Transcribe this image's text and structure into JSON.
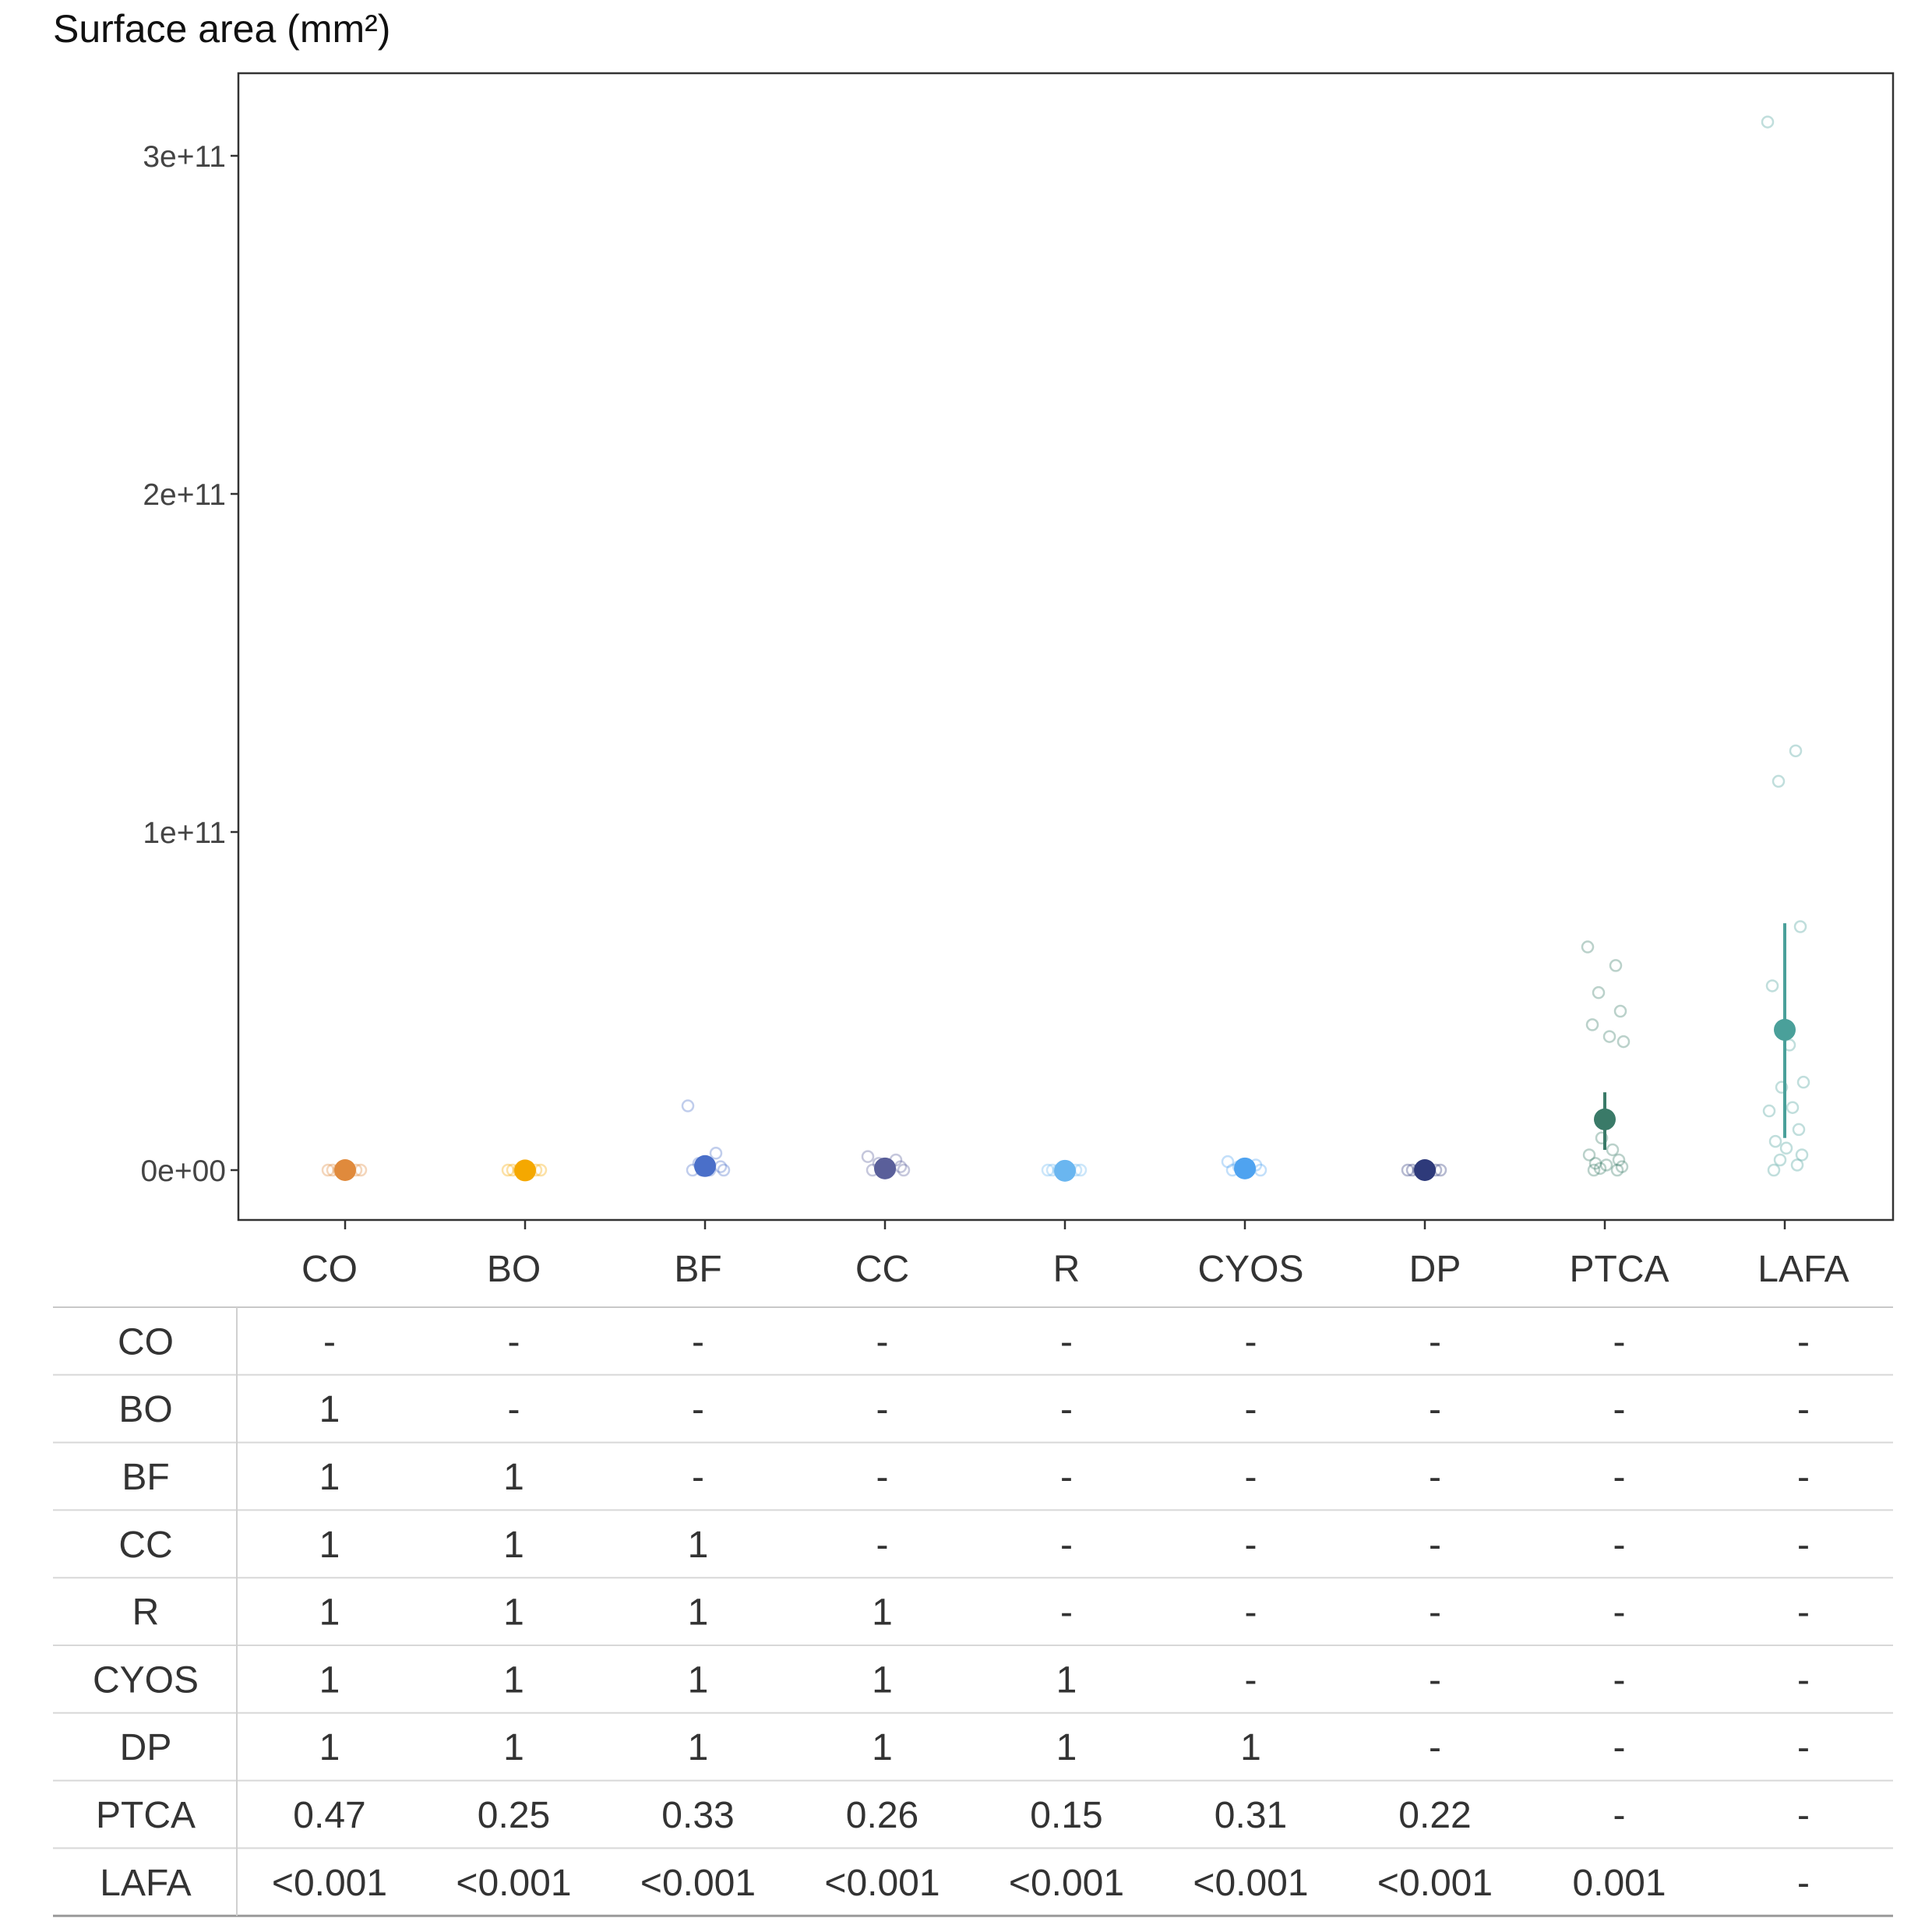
{
  "chart_data": {
    "type": "scatter",
    "title": "Surface area (mm²)",
    "y_ticks": [
      {
        "value": 0,
        "label": "0e+00"
      },
      {
        "value": 100000000000.0,
        "label": "1e+11"
      },
      {
        "value": 200000000000.0,
        "label": "2e+11"
      },
      {
        "value": 300000000000.0,
        "label": "3e+11"
      }
    ],
    "ylim": [
      -15000000000.0,
      325000000000.0
    ],
    "categories": [
      "CO",
      "BO",
      "BF",
      "CC",
      "R",
      "CYOS",
      "DP",
      "PTCA",
      "LAFA"
    ],
    "colors": [
      "#e08a3c",
      "#f5a800",
      "#4a6fc9",
      "#5a5f9a",
      "#6ab6f0",
      "#4fa3f0",
      "#2e3a7a",
      "#3a7a68",
      "#4aa09a"
    ],
    "means": [
      0,
      -100000000.0,
      1200000000.0,
      500000000.0,
      -200000000.0,
      500000000.0,
      0,
      15000000000.0,
      41500000000.0
    ],
    "error_bars": [
      null,
      null,
      null,
      null,
      null,
      null,
      null,
      [
        6000000000.0,
        23000000000.0
      ],
      [
        9500000000.0,
        73000000000.0
      ]
    ],
    "points": [
      [
        0,
        0,
        0,
        0,
        0,
        0
      ],
      [
        0,
        0,
        0,
        0,
        0,
        0
      ],
      [
        19000000000.0,
        5000000000.0,
        2000000000.0,
        1000000000.0,
        0,
        0,
        0,
        0
      ],
      [
        4000000000.0,
        3000000000.0,
        2000000000.0,
        1000000000.0,
        0,
        0,
        0,
        0
      ],
      [
        0,
        0,
        0,
        0,
        0,
        0
      ],
      [
        2500000000.0,
        1500000000.0,
        1000000000.0,
        0,
        0,
        0
      ],
      [
        0,
        0,
        0,
        0,
        0,
        0
      ],
      [
        66000000000.0,
        60500000000.0,
        52500000000.0,
        47000000000.0,
        43000000000.0,
        39500000000.0,
        38000000000.0,
        9500000000.0,
        6000000000.0,
        4500000000.0,
        3000000000.0,
        2000000000.0,
        1500000000.0,
        1000000000.0,
        500000000.0,
        0,
        0
      ],
      [
        310000000000.0,
        124000000000.0,
        115000000000.0,
        72000000000.0,
        54500000000.0,
        37000000000.0,
        26000000000.0,
        24500000000.0,
        18500000000.0,
        17500000000.0,
        12000000000.0,
        8500000000.0,
        6500000000.0,
        4500000000.0,
        3000000000.0,
        1500000000.0,
        0
      ]
    ]
  },
  "table": {
    "columns": [
      "CO",
      "BO",
      "BF",
      "CC",
      "R",
      "CYOS",
      "DP",
      "PTCA",
      "LAFA"
    ],
    "rows": [
      {
        "label": "CO",
        "cells": [
          "-",
          "-",
          "-",
          "-",
          "-",
          "-",
          "-",
          "-",
          "-"
        ]
      },
      {
        "label": "BO",
        "cells": [
          "1",
          "-",
          "-",
          "-",
          "-",
          "-",
          "-",
          "-",
          "-"
        ]
      },
      {
        "label": "BF",
        "cells": [
          "1",
          "1",
          "-",
          "-",
          "-",
          "-",
          "-",
          "-",
          "-"
        ]
      },
      {
        "label": "CC",
        "cells": [
          "1",
          "1",
          "1",
          "-",
          "-",
          "-",
          "-",
          "-",
          "-"
        ]
      },
      {
        "label": "R",
        "cells": [
          "1",
          "1",
          "1",
          "1",
          "-",
          "-",
          "-",
          "-",
          "-"
        ]
      },
      {
        "label": "CYOS",
        "cells": [
          "1",
          "1",
          "1",
          "1",
          "1",
          "-",
          "-",
          "-",
          "-"
        ]
      },
      {
        "label": "DP",
        "cells": [
          "1",
          "1",
          "1",
          "1",
          "1",
          "1",
          "-",
          "-",
          "-"
        ]
      },
      {
        "label": "PTCA",
        "cells": [
          "0.47",
          "0.25",
          "0.33",
          "0.26",
          "0.15",
          "0.31",
          "0.22",
          "-",
          "-"
        ]
      },
      {
        "label": "LAFA",
        "cells": [
          "<0.001",
          "<0.001",
          "<0.001",
          "<0.001",
          "<0.001",
          "<0.001",
          "<0.001",
          "0.001",
          "-"
        ]
      }
    ]
  }
}
